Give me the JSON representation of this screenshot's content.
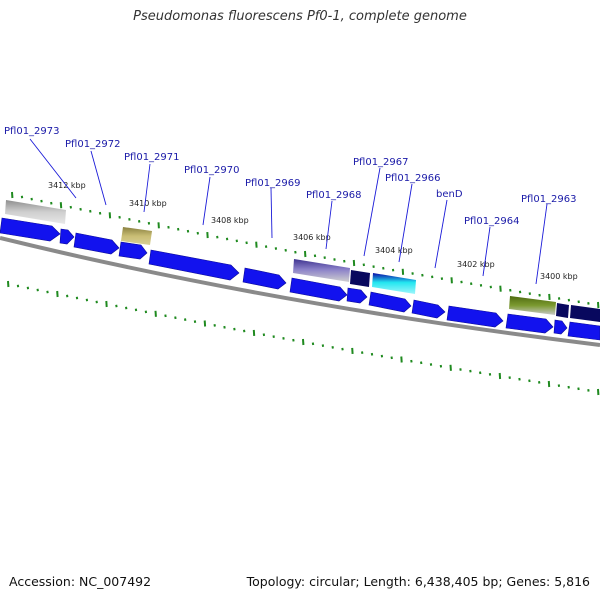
{
  "title": "Pseudomonas fluorescens Pf0-1, complete genome",
  "footer": {
    "accession": "Accession: NC_007492",
    "summary": "Topology: circular; Length: 6,438,405 bp; Genes: 5,816"
  },
  "colors": {
    "gene_blue": "#1010ee",
    "gene_dark": "#08085e",
    "backbone": "#888888",
    "tick_green": "#1f8a1f",
    "label_blue": "#1a1aa8",
    "cyan": "#22e6f0",
    "olive": "#6a8a1c",
    "khaki": "#b8ad66",
    "lavender": "#6a60b0",
    "gray": "#c4c4c4"
  },
  "kbp_labels": [
    {
      "text": "3412 kbp",
      "pos": 3412
    },
    {
      "text": "3410 kbp",
      "pos": 3410
    },
    {
      "text": "3408 kbp",
      "pos": 3408
    },
    {
      "text": "3406 kbp",
      "pos": 3406
    },
    {
      "text": "3404 kbp",
      "pos": 3404
    },
    {
      "text": "3402 kbp",
      "pos": 3402
    },
    {
      "text": "3400 kbp",
      "pos": 3400
    }
  ],
  "gene_labels": [
    {
      "text": "Pfl01_2973"
    },
    {
      "text": "Pfl01_2972"
    },
    {
      "text": "Pfl01_2971"
    },
    {
      "text": "Pfl01_2970"
    },
    {
      "text": "Pfl01_2969"
    },
    {
      "text": "Pfl01_2968"
    },
    {
      "text": "Pfl01_2967"
    },
    {
      "text": "Pfl01_2966"
    },
    {
      "text": "benD"
    },
    {
      "text": "Pfl01_2964"
    },
    {
      "text": "Pfl01_2963"
    }
  ]
}
